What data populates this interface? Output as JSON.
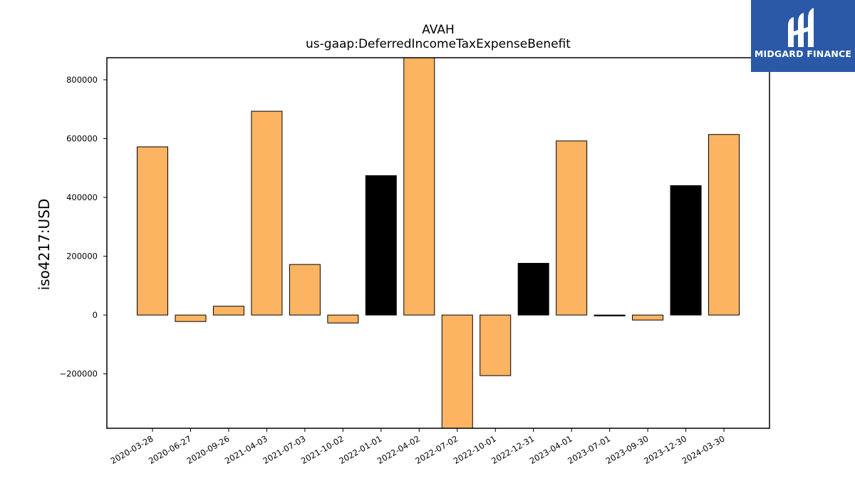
{
  "chart_data": {
    "type": "bar",
    "title": "AVAH",
    "subtitle": "us-gaap:DeferredIncomeTaxExpenseBenefit",
    "xlabel": "",
    "ylabel": "iso4217:USD",
    "ylim": [
      -385000,
      875000
    ],
    "yticks": [
      -200000,
      0,
      200000,
      400000,
      600000,
      800000
    ],
    "ytick_labels": [
      "−200000",
      "0",
      "200000",
      "400000",
      "600000",
      "800000"
    ],
    "categories": [
      "2020-03-28",
      "2020-06-27",
      "2020-09-26",
      "2021-04-03",
      "2021-07-03",
      "2021-10-02",
      "2022-01-01",
      "2022-04-02",
      "2022-07-02",
      "2022-10-01",
      "2022-12-31",
      "2023-04-01",
      "2023-07-01",
      "2023-09-30",
      "2023-12-30",
      "2024-03-30"
    ],
    "values": [
      572000,
      -22000,
      30000,
      693000,
      172000,
      -27000,
      474000,
      875000,
      -385000,
      -206000,
      176000,
      592000,
      -2000,
      -17000,
      440000,
      614000
    ],
    "bar_colors": [
      "#fdb462",
      "#fdb462",
      "#fdb462",
      "#fdb462",
      "#fdb462",
      "#fdb462",
      "#000000",
      "#fdb462",
      "#fdb462",
      "#fdb462",
      "#000000",
      "#fdb462",
      "#000000",
      "#fdb462",
      "#000000",
      "#fdb462"
    ],
    "grid": false
  },
  "logo": {
    "text": "MIDGARD FINANCE",
    "color": "#2b59a8"
  }
}
